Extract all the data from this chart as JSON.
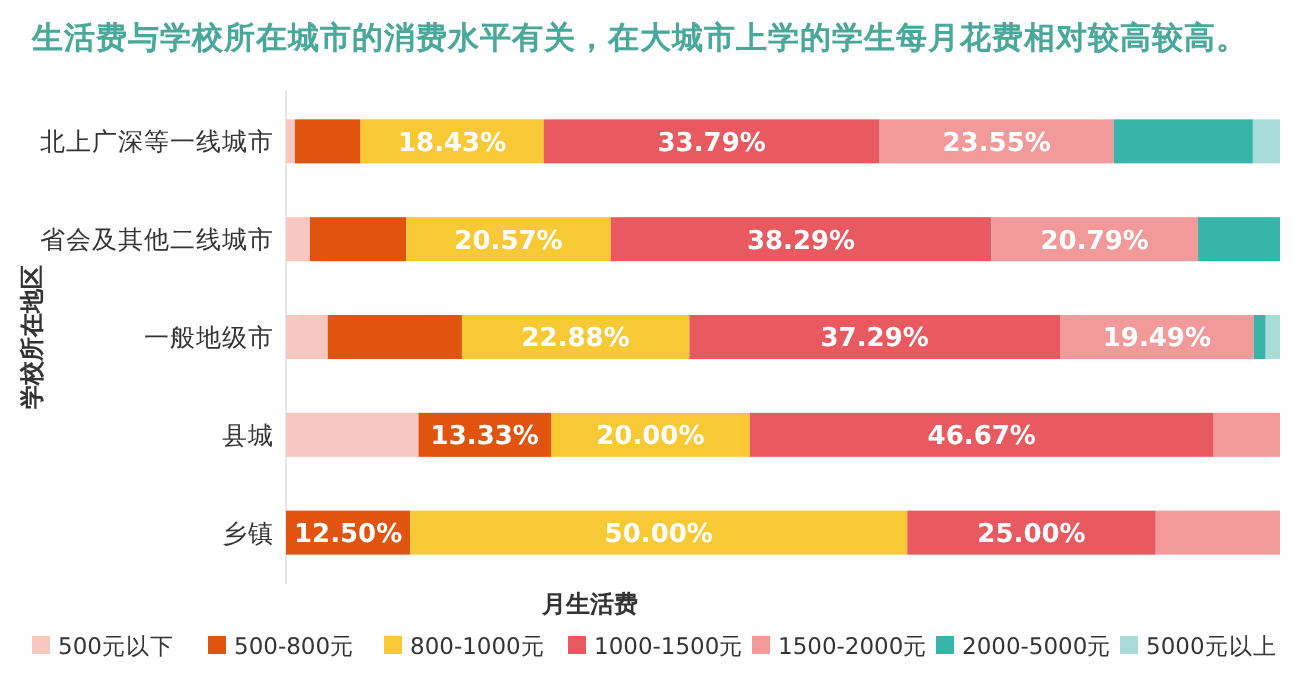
{
  "chart_data": {
    "type": "bar",
    "orientation": "horizontal",
    "stacked": true,
    "title": "生活费与学校所在城市的消费水平有关，在大城市上学的学生每月花费相对较高较高。",
    "xlabel": "月生活费",
    "ylabel": "学校所在地区",
    "categories": [
      "北上广深等一线城市",
      "省会及其他二线城市",
      "一般地级市",
      "县城",
      "乡镇"
    ],
    "xlim": [
      0,
      100
    ],
    "tick_labels": "y",
    "legend": "bottom",
    "series": [
      {
        "name": "500元以下",
        "color": "#f8c8c0",
        "values": [
          0.9,
          2.4,
          4.2,
          13.33,
          0
        ],
        "value_labels": [
          null,
          null,
          null,
          null,
          null
        ]
      },
      {
        "name": "500-800元",
        "color": "#e0540f",
        "values": [
          6.6,
          9.7,
          13.5,
          13.33,
          12.5
        ],
        "value_labels": [
          null,
          null,
          null,
          "13.33%",
          "12.50%"
        ]
      },
      {
        "name": "800-1000元",
        "color": "#f7c935",
        "values": [
          18.43,
          20.57,
          22.88,
          20.0,
          50.0
        ],
        "value_labels": [
          "18.43%",
          "20.57%",
          "22.88%",
          "20.00%",
          "50.00%"
        ]
      },
      {
        "name": "1000-1500元",
        "color": "#e85a5f",
        "values": [
          33.79,
          38.29,
          37.29,
          46.67,
          25.0
        ],
        "value_labels": [
          "33.79%",
          "38.29%",
          "37.29%",
          "46.67%",
          "25.00%"
        ]
      },
      {
        "name": "1500-2000元",
        "color": "#f29a9a",
        "values": [
          23.55,
          20.79,
          19.49,
          6.67,
          12.5
        ],
        "value_labels": [
          "23.55%",
          "20.79%",
          "19.49%",
          null,
          null
        ]
      },
      {
        "name": "2000-5000元",
        "color": "#36b5a8",
        "values": [
          14.0,
          8.25,
          1.2,
          0,
          0
        ],
        "value_labels": [
          null,
          null,
          null,
          null,
          null
        ]
      },
      {
        "name": "5000元以上",
        "color": "#a9dcd7",
        "values": [
          2.73,
          0,
          1.44,
          0,
          0
        ],
        "value_labels": [
          null,
          null,
          null,
          null,
          null
        ]
      }
    ]
  }
}
